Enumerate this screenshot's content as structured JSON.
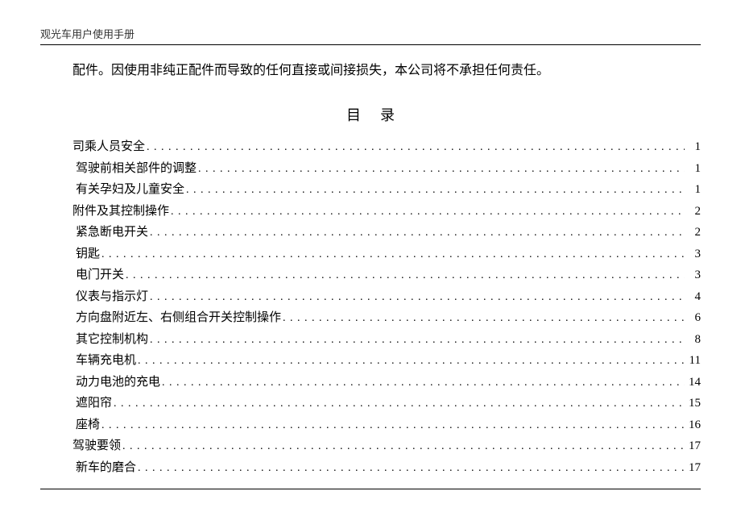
{
  "header": {
    "title": "观光车用户使用手册"
  },
  "intro": "配件。因使用非纯正配件而导致的任何直接或间接损失，本公司将不承担任何责任。",
  "toc": {
    "title": "目录",
    "bullet": "",
    "items": [
      {
        "label": "司乘人员安全",
        "page": "1",
        "indent": false
      },
      {
        "label": "驾驶前相关部件的调整",
        "page": "1",
        "indent": true
      },
      {
        "label": "有关孕妇及儿童安全",
        "page": "1",
        "indent": true
      },
      {
        "label": "附件及其控制操作",
        "page": "2",
        "indent": false
      },
      {
        "label": "紧急断电开关",
        "page": "2",
        "indent": true
      },
      {
        "label": "钥匙",
        "page": "3",
        "indent": true
      },
      {
        "label": "电门开关",
        "page": "3",
        "indent": true
      },
      {
        "label": "仪表与指示灯",
        "page": "4",
        "indent": true
      },
      {
        "label": "方向盘附近左、右侧组合开关控制操作",
        "page": "6",
        "indent": true
      },
      {
        "label": "其它控制机构",
        "page": "8",
        "indent": true
      },
      {
        "label": "车辆充电机",
        "page": "11",
        "indent": true
      },
      {
        "label": "动力电池的充电",
        "page": "14",
        "indent": true
      },
      {
        "label": "遮阳帘",
        "page": "15",
        "indent": true
      },
      {
        "label": "座椅",
        "page": "16",
        "indent": true
      },
      {
        "label": "驾驶要领",
        "page": "17",
        "indent": false
      },
      {
        "label": "新车的磨合",
        "page": "17",
        "indent": true
      }
    ]
  },
  "styles": {
    "background": "#ffffff",
    "text_color": "#000000",
    "header_color": "#333333",
    "rule_color": "#000000",
    "body_fontsize": 15,
    "header_fontsize": 13,
    "toc_title_fontsize": 18
  }
}
